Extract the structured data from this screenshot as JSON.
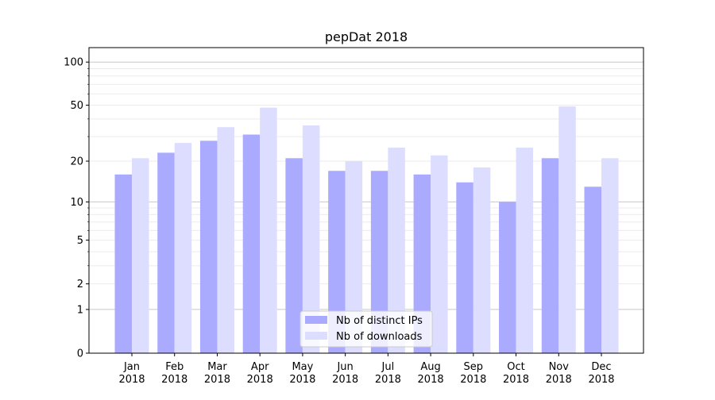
{
  "chart_data": {
    "type": "bar",
    "title": "pepDat 2018",
    "xlabel": "",
    "ylabel": "",
    "yscale": "log10(1+y)",
    "ylim": [
      0,
      126
    ],
    "yticks": [
      0,
      1,
      2,
      5,
      10,
      20,
      50,
      100
    ],
    "categories": [
      "Jan\n2018",
      "Feb\n2018",
      "Mar\n2018",
      "Apr\n2018",
      "May\n2018",
      "Jun\n2018",
      "Jul\n2018",
      "Aug\n2018",
      "Sep\n2018",
      "Oct\n2018",
      "Nov\n2018",
      "Dec\n2018"
    ],
    "series": [
      {
        "name": "Nb of distinct IPs",
        "color": "#aaaaff",
        "values": [
          16,
          23,
          28,
          31,
          21,
          17,
          17,
          16,
          14,
          10,
          21,
          13
        ]
      },
      {
        "name": "Nb of downloads",
        "color": "#ddddff",
        "values": [
          21,
          27,
          35,
          48,
          36,
          20,
          25,
          22,
          18,
          25,
          49,
          21
        ]
      }
    ],
    "grid": true,
    "legend": "bottom-center"
  }
}
